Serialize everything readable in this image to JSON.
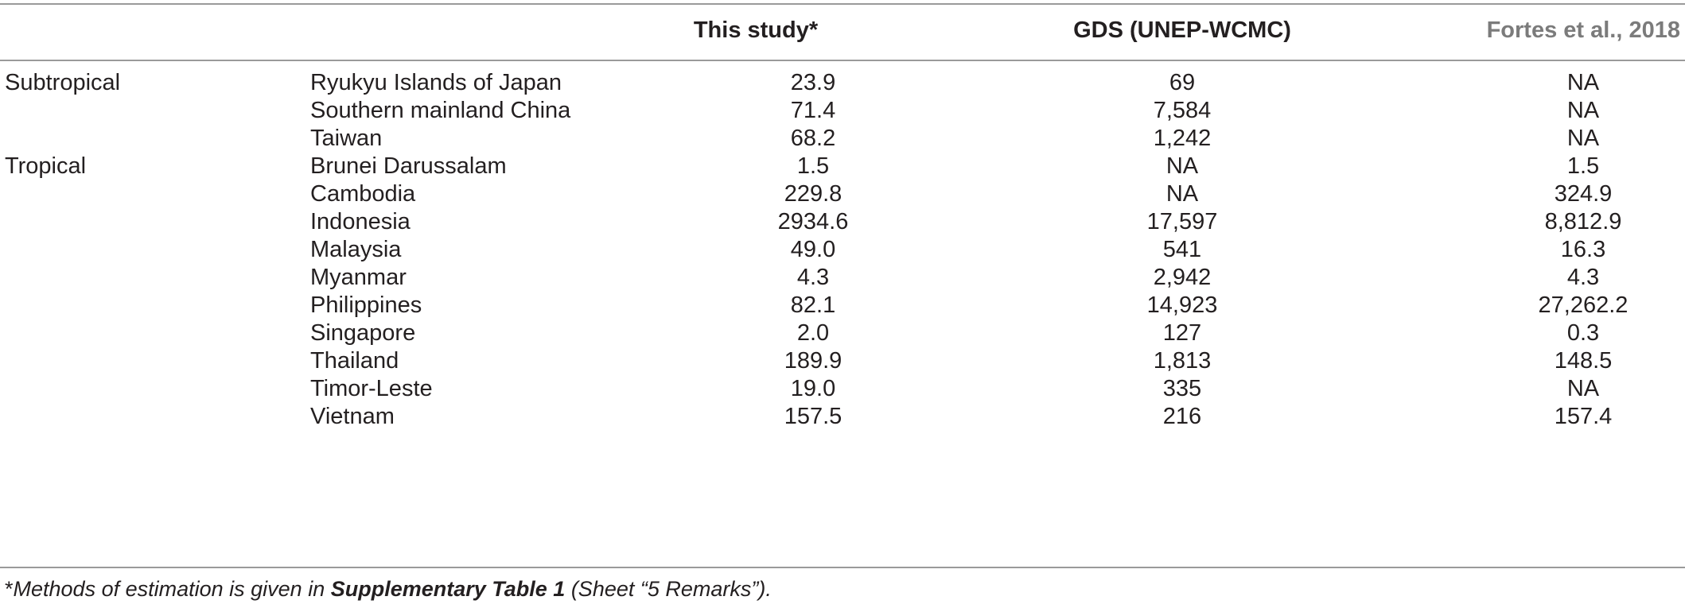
{
  "table": {
    "headers": [
      "",
      "",
      "This study*",
      "GDS (UNEP-WCMC)",
      "Fortes et al., 2018"
    ],
    "rows": [
      {
        "region": "Subtropical",
        "country": "Ryukyu Islands of Japan",
        "this_study": "23.9",
        "gds": "69",
        "fortes": "NA"
      },
      {
        "region": "",
        "country": "Southern mainland China",
        "this_study": "71.4",
        "gds": "7,584",
        "fortes": "NA"
      },
      {
        "region": "",
        "country": "Taiwan",
        "this_study": "68.2",
        "gds": "1,242",
        "fortes": "NA"
      },
      {
        "region": "Tropical",
        "country": "Brunei Darussalam",
        "this_study": "1.5",
        "gds": "NA",
        "fortes": "1.5"
      },
      {
        "region": "",
        "country": "Cambodia",
        "this_study": "229.8",
        "gds": "NA",
        "fortes": "324.9"
      },
      {
        "region": "",
        "country": "Indonesia",
        "this_study": "2934.6",
        "gds": "17,597",
        "fortes": "8,812.9"
      },
      {
        "region": "",
        "country": "Malaysia",
        "this_study": "49.0",
        "gds": "541",
        "fortes": "16.3"
      },
      {
        "region": "",
        "country": "Myanmar",
        "this_study": "4.3",
        "gds": "2,942",
        "fortes": "4.3"
      },
      {
        "region": "",
        "country": "Philippines",
        "this_study": "82.1",
        "gds": "14,923",
        "fortes": "27,262.2"
      },
      {
        "region": "",
        "country": "Singapore",
        "this_study": "2.0",
        "gds": "127",
        "fortes": "0.3"
      },
      {
        "region": "",
        "country": "Thailand",
        "this_study": "189.9",
        "gds": "1,813",
        "fortes": "148.5"
      },
      {
        "region": "",
        "country": "Timor-Leste",
        "this_study": "19.0",
        "gds": "335",
        "fortes": "NA"
      },
      {
        "region": "",
        "country": "Vietnam",
        "this_study": "157.5",
        "gds": "216",
        "fortes": "157.4"
      }
    ]
  },
  "footnote": {
    "marker": "*",
    "text_before": "Methods of estimation is given in ",
    "bold": "Supplementary Table 1",
    "text_after": " (Sheet “5 Remarks”)."
  }
}
